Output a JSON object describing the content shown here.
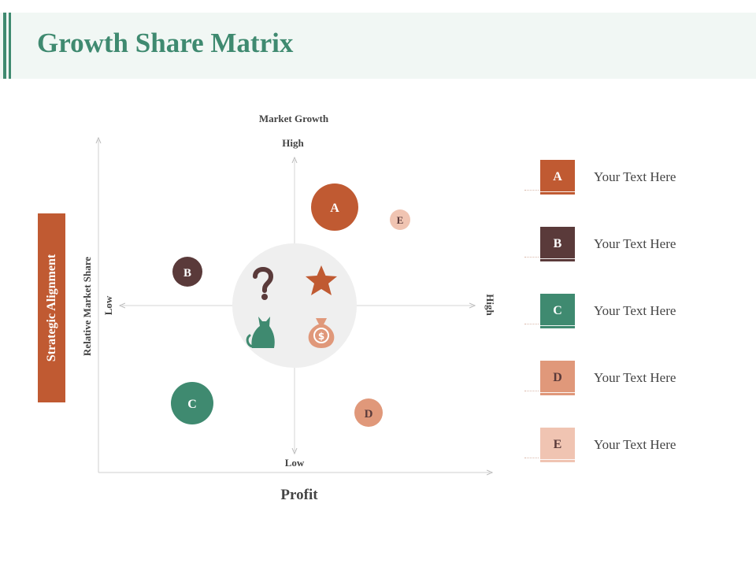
{
  "title": "Growth Share Matrix",
  "side_label": "Strategic Alignment",
  "axes": {
    "y_title": "Market Growth",
    "y_high": "High",
    "y_low": "Low",
    "x_title": "Relative Market Share",
    "x_low": "Low",
    "x_high": "High",
    "bottom_label": "Profit"
  },
  "bubbles": [
    {
      "label": "A",
      "color": "#c05a32"
    },
    {
      "label": "B",
      "color": "#5a3a3a"
    },
    {
      "label": "C",
      "color": "#3f8a70"
    },
    {
      "label": "D",
      "color": "#e0987a"
    },
    {
      "label": "E",
      "color": "#f0c4b2"
    }
  ],
  "center_icons": [
    "question-mark-icon",
    "star-icon",
    "cat-icon",
    "money-bag-icon"
  ],
  "legend": [
    {
      "label": "A",
      "text": "Your Text Here",
      "color": "#c05a32"
    },
    {
      "label": "B",
      "text": "Your Text Here",
      "color": "#5a3a3a"
    },
    {
      "label": "C",
      "text": "Your Text Here",
      "color": "#3f8a70"
    },
    {
      "label": "D",
      "text": "Your Text Here",
      "color": "#e0987a"
    },
    {
      "label": "E",
      "text": "Your Text Here",
      "color": "#f0c4b2"
    }
  ]
}
